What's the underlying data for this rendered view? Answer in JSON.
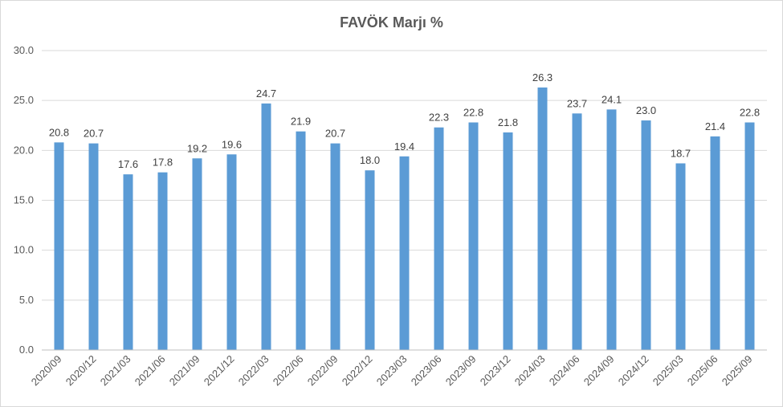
{
  "chart_data": {
    "type": "bar",
    "title": "FAVÖK Marjı %",
    "xlabel": "",
    "ylabel": "",
    "ylim": [
      0,
      30
    ],
    "yticks": [
      "0.0",
      "5.0",
      "10.0",
      "15.0",
      "20.0",
      "25.0",
      "30.0"
    ],
    "grid": true,
    "legend": "none",
    "bar_color": "#5b9bd5",
    "categories": [
      "2020/09",
      "2020/12",
      "2021/03",
      "2021/06",
      "2021/09",
      "2021/12",
      "2022/03",
      "2022/06",
      "2022/09",
      "2022/12",
      "2023/03",
      "2023/06",
      "2023/09",
      "2023/12",
      "2024/03",
      "2024/06",
      "2024/09",
      "2024/12",
      "2025/03",
      "2025/06",
      "2025/09"
    ],
    "values": [
      20.8,
      20.7,
      17.6,
      17.8,
      19.2,
      19.6,
      24.7,
      21.9,
      20.7,
      18.0,
      19.4,
      22.3,
      22.8,
      21.8,
      26.3,
      23.7,
      24.1,
      23.0,
      18.7,
      21.4,
      22.8
    ],
    "value_labels": [
      "20.8",
      "20.7",
      "17.6",
      "17.8",
      "19.2",
      "19.6",
      "24.7",
      "21.9",
      "20.7",
      "18.0",
      "19.4",
      "22.3",
      "22.8",
      "21.8",
      "26.3",
      "23.7",
      "24.1",
      "23.0",
      "18.7",
      "21.4",
      "22.8"
    ]
  }
}
